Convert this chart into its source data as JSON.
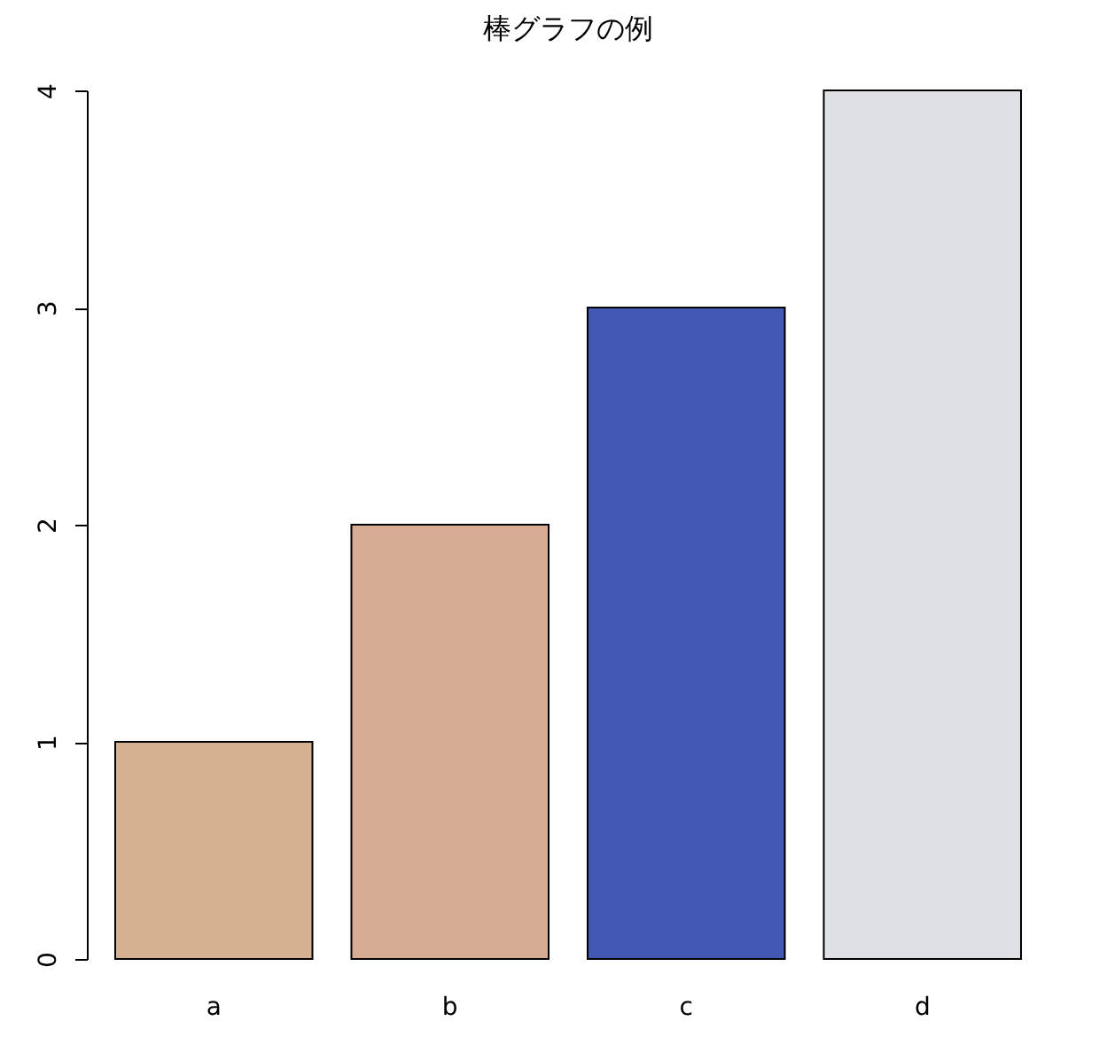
{
  "chart_data": {
    "type": "bar",
    "title": "棒グラフの例",
    "categories": [
      "a",
      "b",
      "c",
      "d"
    ],
    "values": [
      1,
      2,
      3,
      4
    ],
    "colors": [
      "#d4b190",
      "#d8ac94",
      "#4258b4",
      "#dde1e5"
    ],
    "ylim": [
      0,
      4
    ],
    "yticks": [
      0,
      1,
      2,
      3,
      4
    ],
    "grid": false
  }
}
